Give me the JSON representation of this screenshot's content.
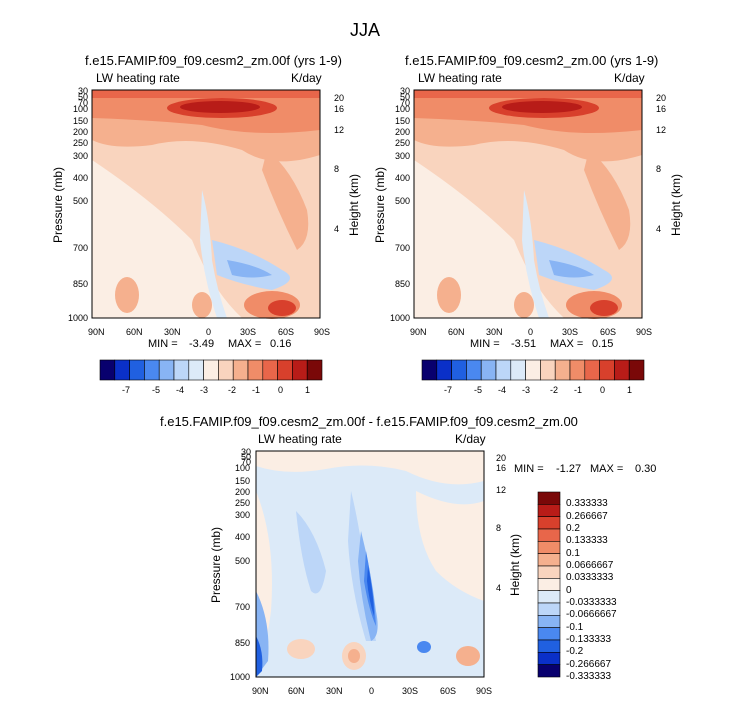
{
  "figure_title": "JJA",
  "colors": {
    "scale": [
      "#08006e",
      "#0a30c8",
      "#2060e0",
      "#4a88f0",
      "#88b4f4",
      "#bcd6f8",
      "#dceaf8",
      "#fbeee4",
      "#f9d4be",
      "#f5b08e",
      "#f08c68",
      "#e8664a",
      "#d8402c",
      "#b81c18",
      "#7a0808"
    ]
  },
  "chart_data": [
    {
      "type": "heatmap",
      "title": "f.e15.FAMIP.f09_f09.cesm2_zm.00f (yrs 1-9)",
      "left_label": "LW heating rate",
      "right_label": "K/day",
      "ylabel": "Pressure (mb)",
      "ylabel_right": "Height (km)",
      "x_ticks": [
        "90N",
        "60N",
        "30N",
        "0",
        "30S",
        "60S",
        "90S"
      ],
      "y_ticks": [
        "30",
        "50",
        "70",
        "100",
        "150",
        "200",
        "250",
        "300",
        "400",
        "500",
        "700",
        "850",
        "1000"
      ],
      "height_ticks": [
        "20",
        "16",
        "12",
        "8",
        "4"
      ],
      "min_label": "MIN =",
      "min": "-3.49",
      "max_label": "MAX =",
      "max": "0.16",
      "colorbar_ticks": [
        "-7",
        "-5",
        "-4",
        "-3",
        "-2",
        "-1",
        "0",
        "1"
      ]
    },
    {
      "type": "heatmap",
      "title": "f.e15.FAMIP.f09_f09.cesm2_zm.00 (yrs 1-9)",
      "left_label": "LW heating rate",
      "right_label": "K/day",
      "ylabel": "Pressure (mb)",
      "ylabel_right": "Height (km)",
      "x_ticks": [
        "90N",
        "60N",
        "30N",
        "0",
        "30S",
        "60S",
        "90S"
      ],
      "y_ticks": [
        "30",
        "50",
        "70",
        "100",
        "150",
        "200",
        "250",
        "300",
        "400",
        "500",
        "700",
        "850",
        "1000"
      ],
      "height_ticks": [
        "20",
        "16",
        "12",
        "8",
        "4"
      ],
      "min_label": "MIN =",
      "min": "-3.51",
      "max_label": "MAX =",
      "max": "0.15",
      "colorbar_ticks": [
        "-7",
        "-5",
        "-4",
        "-3",
        "-2",
        "-1",
        "0",
        "1"
      ]
    },
    {
      "type": "heatmap",
      "title": "f.e15.FAMIP.f09_f09.cesm2_zm.00f - f.e15.FAMIP.f09_f09.cesm2_zm.00",
      "left_label": "LW heating rate",
      "right_label": "K/day",
      "ylabel": "Pressure (mb)",
      "ylabel_right": "Height (km)",
      "x_ticks": [
        "90N",
        "60N",
        "30N",
        "0",
        "30S",
        "60S",
        "90S"
      ],
      "y_ticks": [
        "30",
        "50",
        "70",
        "100",
        "150",
        "200",
        "250",
        "300",
        "400",
        "500",
        "700",
        "850",
        "1000"
      ],
      "height_ticks": [
        "20",
        "16",
        "12",
        "8",
        "4"
      ],
      "min_label": "MIN =",
      "min": "-1.27",
      "max_label": "MAX =",
      "max": "0.30",
      "colorbar_ticks": [
        "0.333333",
        "0.266667",
        "0.2",
        "0.133333",
        "0.1",
        "0.0666667",
        "0.0333333",
        "0",
        "-0.0333333",
        "-0.0666667",
        "-0.1",
        "-0.133333",
        "-0.2",
        "-0.266667",
        "-0.333333"
      ]
    }
  ]
}
